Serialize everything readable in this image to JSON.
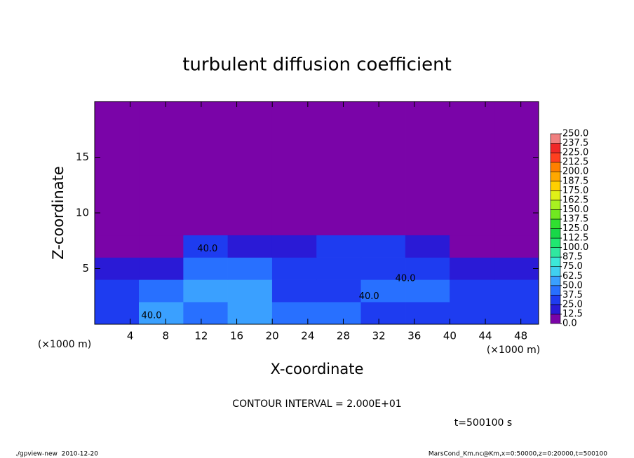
{
  "chart_data": {
    "type": "heatmap",
    "title": "turbulent diffusion coefficient",
    "xlabel": "X-coordinate",
    "ylabel": "Z-coordinate",
    "x_unit": "(×1000 m)",
    "y_unit": "(×1000 m)",
    "xlim": [
      0,
      50
    ],
    "ylim": [
      0,
      20
    ],
    "xticks": [
      4,
      8,
      12,
      16,
      20,
      24,
      28,
      32,
      36,
      40,
      44,
      48
    ],
    "yticks": [
      5,
      10,
      15
    ],
    "x_edges": [
      0,
      5,
      10,
      15,
      20,
      25,
      30,
      35,
      40,
      45,
      50
    ],
    "z_edges": [
      0,
      2,
      4,
      6,
      8,
      20
    ],
    "values": [
      [
        30,
        50,
        45,
        55,
        40,
        40,
        35,
        35,
        30,
        30
      ],
      [
        25,
        40,
        50,
        50,
        35,
        35,
        40,
        40,
        25,
        25
      ],
      [
        15,
        20,
        45,
        40,
        30,
        35,
        35,
        30,
        15,
        15
      ],
      [
        5,
        5,
        25,
        20,
        15,
        25,
        25,
        20,
        5,
        5
      ],
      [
        0,
        0,
        0,
        0,
        0,
        5,
        0,
        0,
        0,
        0
      ]
    ],
    "levels": [
      {
        "value": 0,
        "label": "0.0"
      },
      {
        "value": 12.5,
        "label": "12.5"
      },
      {
        "value": 25,
        "label": "25.0"
      },
      {
        "value": 37.5,
        "label": "37.5"
      },
      {
        "value": 50,
        "label": "50.0"
      },
      {
        "value": 62.5,
        "label": "62.5"
      },
      {
        "value": 75,
        "label": "75.0"
      },
      {
        "value": 87.5,
        "label": "87.5"
      },
      {
        "value": 100,
        "label": "100.0"
      },
      {
        "value": 112.5,
        "label": "112.5"
      },
      {
        "value": 125,
        "label": "125.0"
      },
      {
        "value": 137.5,
        "label": "137.5"
      },
      {
        "value": 150,
        "label": "150.0"
      },
      {
        "value": 162.5,
        "label": "162.5"
      },
      {
        "value": 175,
        "label": "175.0"
      },
      {
        "value": 187.5,
        "label": "187.5"
      },
      {
        "value": 200,
        "label": "200.0"
      },
      {
        "value": 212.5,
        "label": "212.5"
      },
      {
        "value": 225,
        "label": "225.0"
      },
      {
        "value": 237.5,
        "label": "237.5"
      },
      {
        "value": 250,
        "label": "250.0"
      }
    ],
    "colors": [
      "#7a04a8",
      "#2a1ad6",
      "#1e3cf0",
      "#2870ff",
      "#3aa0ff",
      "#40d0f0",
      "#3ce8d8",
      "#30e8a0",
      "#20e870",
      "#18d848",
      "#30e030",
      "#70e820",
      "#a8f020",
      "#e0f018",
      "#ffd000",
      "#ffa800",
      "#ff8000",
      "#ff4020",
      "#f02828",
      "#f08080"
    ],
    "contour_labels": [
      {
        "text": "40.0",
        "x": 12.7,
        "z": 6.75
      },
      {
        "text": "40.0",
        "x": 35,
        "z": 4.1
      },
      {
        "text": "40.0",
        "x": 30.9,
        "z": 2.5
      },
      {
        "text": "40.0",
        "x": 6.4,
        "z": 0.75
      }
    ],
    "contour_interval": "CONTOUR INTERVAL = 2.000E+01",
    "time_label": "t=500100 s",
    "footer_left": "./gpview-new  2010-12-20",
    "footer_right": "MarsCond_Km.nc@Km,x=0:50000,z=0:20000,t=500100"
  }
}
